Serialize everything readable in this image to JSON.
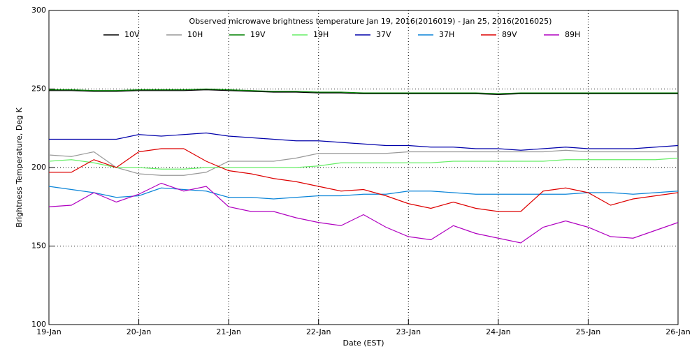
{
  "chart_data": {
    "type": "line",
    "title": "Observed microwave brightness temperature Jan 19, 2016(2016019) - Jan 25, 2016(2016025)",
    "xlabel": "Date (EST)",
    "ylabel": "Brightness Temperature, Deg K",
    "x": [
      0,
      0.25,
      0.5,
      0.75,
      1,
      1.25,
      1.5,
      1.75,
      2,
      2.25,
      2.5,
      2.75,
      3,
      3.25,
      3.5,
      3.75,
      4,
      4.25,
      4.5,
      4.75,
      5,
      5.25,
      5.5,
      5.75,
      6,
      6.25,
      6.5,
      6.75,
      7
    ],
    "xlim": [
      0,
      7
    ],
    "xticks": [
      {
        "value": 0,
        "label": "19-Jan"
      },
      {
        "value": 1,
        "label": "20-Jan"
      },
      {
        "value": 2,
        "label": "21-Jan"
      },
      {
        "value": 3,
        "label": "22-Jan"
      },
      {
        "value": 4,
        "label": "23-Jan"
      },
      {
        "value": 5,
        "label": "24-Jan"
      },
      {
        "value": 6,
        "label": "25-Jan"
      },
      {
        "value": 7,
        "label": "26-Jan"
      }
    ],
    "ylim": [
      100,
      300
    ],
    "yticks": [
      100,
      150,
      200,
      250,
      300
    ],
    "grid": true,
    "legend_position": "top",
    "series": [
      {
        "name": "10V",
        "color": "#000000",
        "values": [
          249,
          249,
          248.5,
          248.5,
          249,
          249,
          249,
          249.5,
          249,
          248.5,
          248,
          248,
          247.5,
          247.5,
          247,
          247,
          247,
          247,
          247,
          247,
          246.5,
          247,
          247,
          247,
          247,
          247,
          247,
          247,
          247
        ]
      },
      {
        "name": "10H",
        "color": "#999999",
        "values": [
          208,
          207,
          210,
          200,
          196,
          195,
          195,
          197,
          204,
          204,
          204,
          206,
          209,
          209,
          209,
          209,
          210,
          210,
          210,
          210,
          210,
          210,
          210,
          211,
          210,
          210,
          210,
          210,
          210
        ]
      },
      {
        "name": "19V",
        "color": "#008000",
        "values": [
          249.5,
          249.5,
          249,
          249,
          249.5,
          249.5,
          249.5,
          250,
          249.5,
          249,
          248.5,
          248.5,
          248,
          248,
          247.5,
          247.5,
          247.5,
          247.5,
          247.5,
          247.5,
          247,
          247.5,
          247.5,
          247.5,
          247.5,
          247.5,
          247.5,
          247.5,
          247.5
        ]
      },
      {
        "name": "19H",
        "color": "#66ee66",
        "values": [
          204,
          205,
          203,
          200,
          200,
          199,
          199,
          200,
          200,
          200,
          200,
          200,
          201,
          203,
          203,
          203,
          203,
          203,
          204,
          204,
          204,
          204,
          204,
          205,
          205,
          205,
          205,
          205,
          206
        ]
      },
      {
        "name": "37V",
        "color": "#0000aa",
        "values": [
          218,
          218,
          218,
          218,
          221,
          220,
          221,
          222,
          220,
          219,
          218,
          217,
          217,
          216,
          215,
          214,
          214,
          213,
          213,
          212,
          212,
          211,
          212,
          213,
          212,
          212,
          212,
          213,
          214
        ]
      },
      {
        "name": "37H",
        "color": "#0a84d8",
        "values": [
          188,
          186,
          184,
          181,
          182,
          187,
          186,
          185,
          181,
          181,
          180,
          181,
          182,
          182,
          183,
          183,
          185,
          185,
          184,
          183,
          183,
          183,
          183,
          183,
          184,
          184,
          183,
          184,
          185
        ]
      },
      {
        "name": "89V",
        "color": "#dd0000",
        "values": [
          197,
          197,
          205,
          200,
          210,
          212,
          212,
          204,
          198,
          196,
          193,
          191,
          188,
          185,
          186,
          182,
          177,
          174,
          178,
          174,
          172,
          172,
          185,
          187,
          184,
          176,
          180,
          182,
          184
        ]
      },
      {
        "name": "89H",
        "color": "#b000c0",
        "values": [
          175,
          176,
          184,
          178,
          183,
          190,
          185,
          188,
          175,
          172,
          172,
          168,
          165,
          163,
          170,
          162,
          156,
          154,
          163,
          158,
          155,
          152,
          162,
          166,
          162,
          156,
          155,
          160,
          165
        ]
      }
    ]
  }
}
